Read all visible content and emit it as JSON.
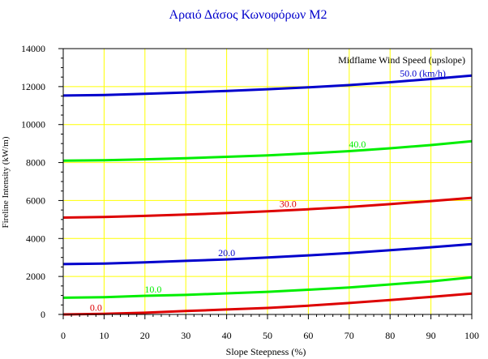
{
  "chart_data": {
    "type": "line",
    "title": "Αραιό Δάσος Κωνοφόρων M2",
    "xlabel": "Slope Steepness (%)",
    "ylabel": "Fireline Intensity (kW/m)",
    "xlim": [
      0,
      100
    ],
    "ylim": [
      0,
      14000
    ],
    "xticks": [
      0,
      10,
      20,
      30,
      40,
      50,
      60,
      70,
      80,
      90,
      100
    ],
    "yticks": [
      0,
      2000,
      4000,
      6000,
      8000,
      10000,
      12000,
      14000
    ],
    "grid": true,
    "legend_title": "Midflame Wind Speed (upslope)",
    "x": [
      0,
      10,
      20,
      30,
      40,
      50,
      60,
      70,
      80,
      90,
      100
    ],
    "series": [
      {
        "name": "0.0",
        "color": "#dd0000",
        "values": [
          0,
          30,
          90,
          180,
          260,
          340,
          460,
          600,
          760,
          920,
          1100
        ]
      },
      {
        "name": "10.0",
        "color": "#00ee00",
        "values": [
          880,
          910,
          980,
          1030,
          1110,
          1190,
          1300,
          1420,
          1580,
          1740,
          1950
        ]
      },
      {
        "name": "20.0",
        "color": "#0000cc",
        "values": [
          2650,
          2680,
          2740,
          2820,
          2900,
          3000,
          3110,
          3230,
          3380,
          3540,
          3700
        ]
      },
      {
        "name": "30.0",
        "color": "#dd0000",
        "values": [
          5100,
          5130,
          5190,
          5260,
          5340,
          5430,
          5540,
          5660,
          5810,
          5970,
          6140
        ]
      },
      {
        "name": "40.0",
        "color": "#00ee00",
        "values": [
          8100,
          8120,
          8170,
          8230,
          8300,
          8380,
          8480,
          8600,
          8750,
          8920,
          9120
        ]
      },
      {
        "name": "50.0 (km/h)",
        "color": "#0000cc",
        "values": [
          11530,
          11560,
          11620,
          11690,
          11770,
          11860,
          11960,
          12080,
          12230,
          12400,
          12580
        ]
      }
    ],
    "series_labels_at_x": [
      8,
      22,
      40,
      55,
      72,
      88
    ]
  }
}
